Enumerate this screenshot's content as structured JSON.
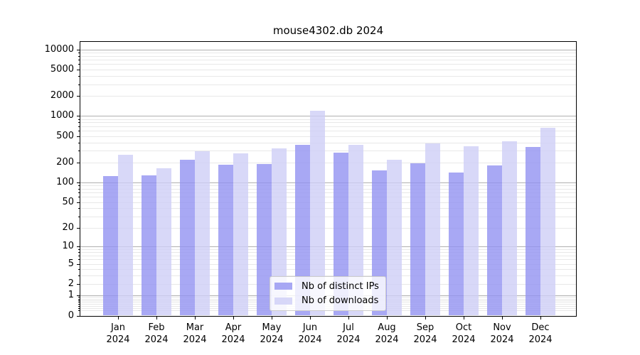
{
  "title": "mouse4302.db 2024",
  "legend": {
    "entries": [
      {
        "label": "Nb of distinct IPs",
        "swatch_color": "#9292f1"
      },
      {
        "label": "Nb of downloads",
        "swatch_color": "#cecef6"
      }
    ]
  },
  "y_axis": {
    "tick_labels": [
      "0",
      "1",
      "2",
      "5",
      "10",
      "20",
      "50",
      "100",
      "200",
      "500",
      "1000",
      "2000",
      "5000",
      "10000"
    ]
  },
  "x_axis": {
    "year_label": "2024"
  },
  "chart_data": {
    "type": "bar",
    "title": "mouse4302.db 2024",
    "categories": [
      "Jan",
      "Feb",
      "Mar",
      "Apr",
      "May",
      "Jun",
      "Jul",
      "Aug",
      "Sep",
      "Oct",
      "Nov",
      "Dec"
    ],
    "category_year": "2024",
    "series": [
      {
        "name": "Nb of distinct IPs",
        "color": "#9292f1",
        "alpha": 0.8,
        "values": [
          123,
          128,
          219,
          185,
          190,
          365,
          280,
          151,
          194,
          139,
          180,
          344
        ]
      },
      {
        "name": "Nb of downloads",
        "color": "#cecef6",
        "alpha": 0.8,
        "values": [
          263,
          164,
          297,
          271,
          325,
          1200,
          371,
          219,
          387,
          348,
          416,
          664
        ]
      }
    ],
    "yscale": "log1p",
    "ylim": [
      0,
      13000
    ],
    "yticks": [
      0,
      1,
      2,
      5,
      10,
      20,
      50,
      100,
      200,
      500,
      1000,
      2000,
      5000,
      10000
    ],
    "grid": true,
    "grid_major_color": "#b0b0b0",
    "grid_minor_color": "#e8e8e8",
    "legend_position": "lower center",
    "xlabel": "",
    "ylabel": ""
  }
}
